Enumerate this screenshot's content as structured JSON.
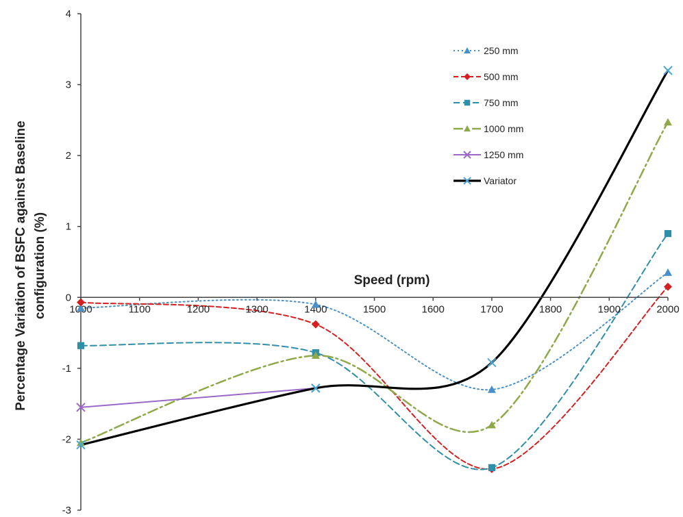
{
  "chart_data": {
    "type": "line",
    "xlabel": "Speed (rpm)",
    "ylabel_line1": "Percentage Variation of BSFC against Baseline",
    "ylabel_line2": "configuration (%)",
    "x_ticks": [
      "1000",
      "1100",
      "1200",
      "1300",
      "1400",
      "1500",
      "1600",
      "1700",
      "1800",
      "1900",
      "2000"
    ],
    "y_ticks": [
      "-3",
      "-2",
      "-1",
      "0",
      "1",
      "2",
      "3",
      "4"
    ],
    "xlim": [
      1000,
      2000
    ],
    "ylim": [
      -3,
      4
    ],
    "grid": false,
    "legend_position": "top-right",
    "series": [
      {
        "name": "250 mm",
        "x": [
          1000,
          1400,
          1700,
          2000
        ],
        "values": [
          -0.15,
          -0.1,
          -1.3,
          0.35
        ],
        "color": "#4a90c8",
        "dash": "2,4",
        "marker": "triangle",
        "width": 2
      },
      {
        "name": "500 mm",
        "x": [
          1000,
          1400,
          1700,
          2000
        ],
        "values": [
          -0.07,
          -0.38,
          -2.42,
          0.15
        ],
        "color": "#d42020",
        "dash": "7,4",
        "marker": "diamond",
        "width": 2
      },
      {
        "name": "750 mm",
        "x": [
          1000,
          1400,
          1700,
          2000
        ],
        "values": [
          -0.68,
          -0.78,
          -2.4,
          0.9
        ],
        "color": "#2f8ea8",
        "dash": "9,5",
        "marker": "square",
        "width": 2
      },
      {
        "name": "1000 mm",
        "x": [
          1000,
          1400,
          1700,
          2000
        ],
        "values": [
          -2.05,
          -0.82,
          -1.8,
          2.47
        ],
        "color": "#8ea84a",
        "dash": "14,5,3,5",
        "marker": "triangle",
        "width": 2.5
      },
      {
        "name": "1250 mm",
        "x": [
          1000,
          1400
        ],
        "values": [
          -1.55,
          -1.28
        ],
        "color": "#9a68c8",
        "dash": "",
        "marker": "x",
        "width": 2
      },
      {
        "name": "Variator",
        "x": [
          1000,
          1400,
          1700,
          2000
        ],
        "values": [
          -2.08,
          -1.28,
          -0.92,
          3.2
        ],
        "color": "#000000",
        "dash": "",
        "marker": "x",
        "width": 3.2,
        "marker_color": "#4aa8d8"
      }
    ]
  }
}
